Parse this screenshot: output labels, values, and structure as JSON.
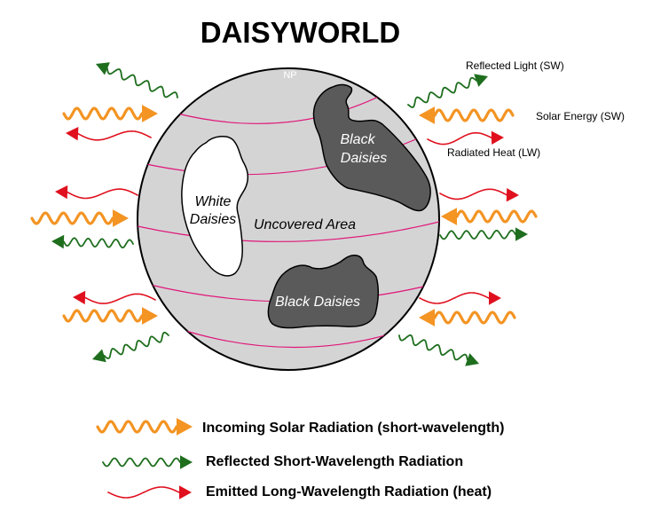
{
  "title": "DAISYWORLD",
  "globe": {
    "pole_label": "NP",
    "white_daisies_line1": "White",
    "white_daisies_line2": "Daisies",
    "black_daisies_top_line1": "Black",
    "black_daisies_top_line2": "Daisies",
    "uncovered_area": "Uncovered Area",
    "black_daisies_bottom": "Black Daisies"
  },
  "annotations": {
    "reflected_light": "Reflected Light (SW)",
    "solar_energy": "Solar Energy (SW)",
    "radiated_heat": "Radiated Heat (LW)"
  },
  "legend": {
    "incoming": "Incoming Solar Radiation (short-wavelength)",
    "reflected": "Reflected Short-Wavelength Radiation",
    "emitted": "Emitted Long-Wavelength Radiation (heat)"
  },
  "colors": {
    "incoming_solar": "#f39423",
    "reflected_sw": "#1e6e1e",
    "emitted_lw": "#e0101e",
    "globe_fill": "#d4d4d4",
    "black_daisies": "#5a5a5a",
    "white_daisies": "#ffffff",
    "latitude_lines": "#e0167a"
  }
}
